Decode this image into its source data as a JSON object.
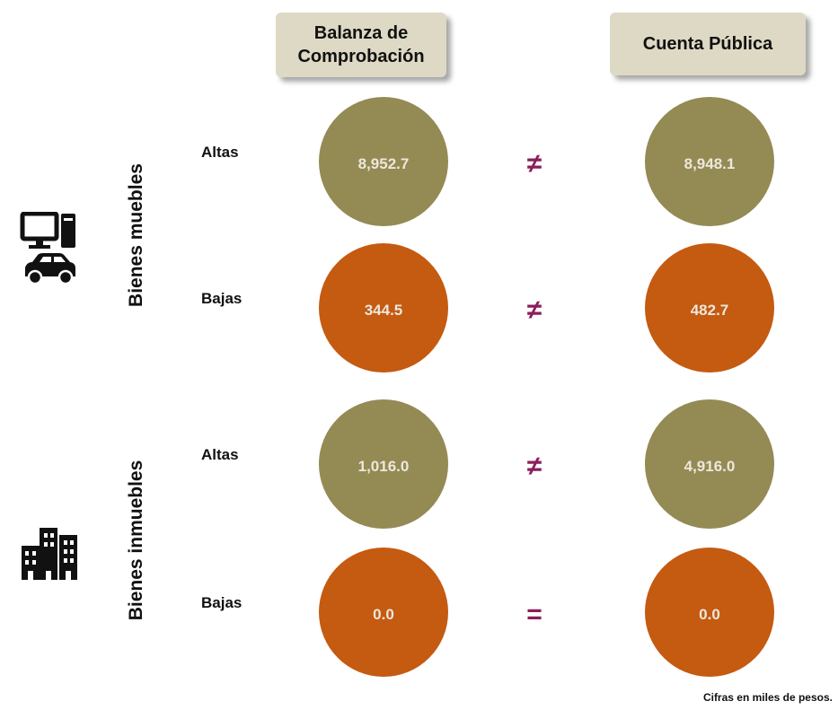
{
  "headers": [
    "Balanza de Comprobación",
    "Cuenta Pública"
  ],
  "groups": [
    {
      "label": "Bienes muebles",
      "rows": [
        {
          "label": "Altas",
          "balanza": "8,952.7",
          "relation": "≠",
          "cuenta": "8,948.1"
        },
        {
          "label": "Bajas",
          "balanza": "344.5",
          "relation": "≠",
          "cuenta": "482.7"
        }
      ]
    },
    {
      "label": "Bienes inmuebles",
      "rows": [
        {
          "label": "Altas",
          "balanza": "1,016.0",
          "relation": "≠",
          "cuenta": "4,916.0"
        },
        {
          "label": "Bajas",
          "balanza": "0.0",
          "relation": "=",
          "cuenta": "0.0"
        }
      ]
    }
  ],
  "note": "Cifras en miles de pesos."
}
